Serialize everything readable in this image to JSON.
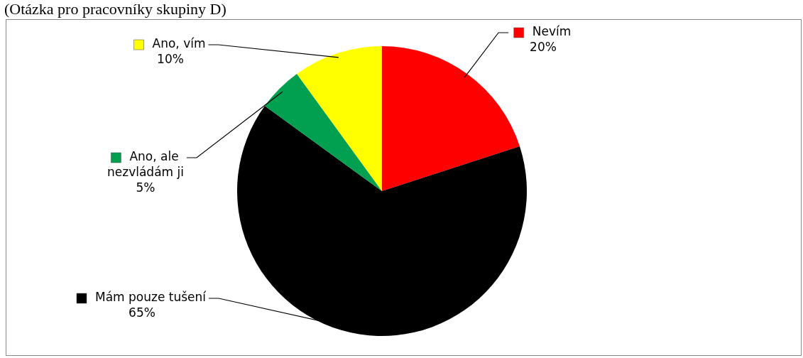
{
  "chart_data": {
    "type": "pie",
    "title": "(Otázka pro pracovníky skupiny D)",
    "categories": [
      "Nevím",
      "Mám pouze tušení",
      "Ano, ale nezvládám ji",
      "Ano, vím"
    ],
    "values": [
      20,
      65,
      5,
      10
    ],
    "colors": [
      "#ff0000",
      "#000000",
      "#00a050",
      "#ffff00"
    ],
    "value_labels": [
      "20%",
      "65%",
      "5%",
      "10%"
    ],
    "legend": "left"
  }
}
